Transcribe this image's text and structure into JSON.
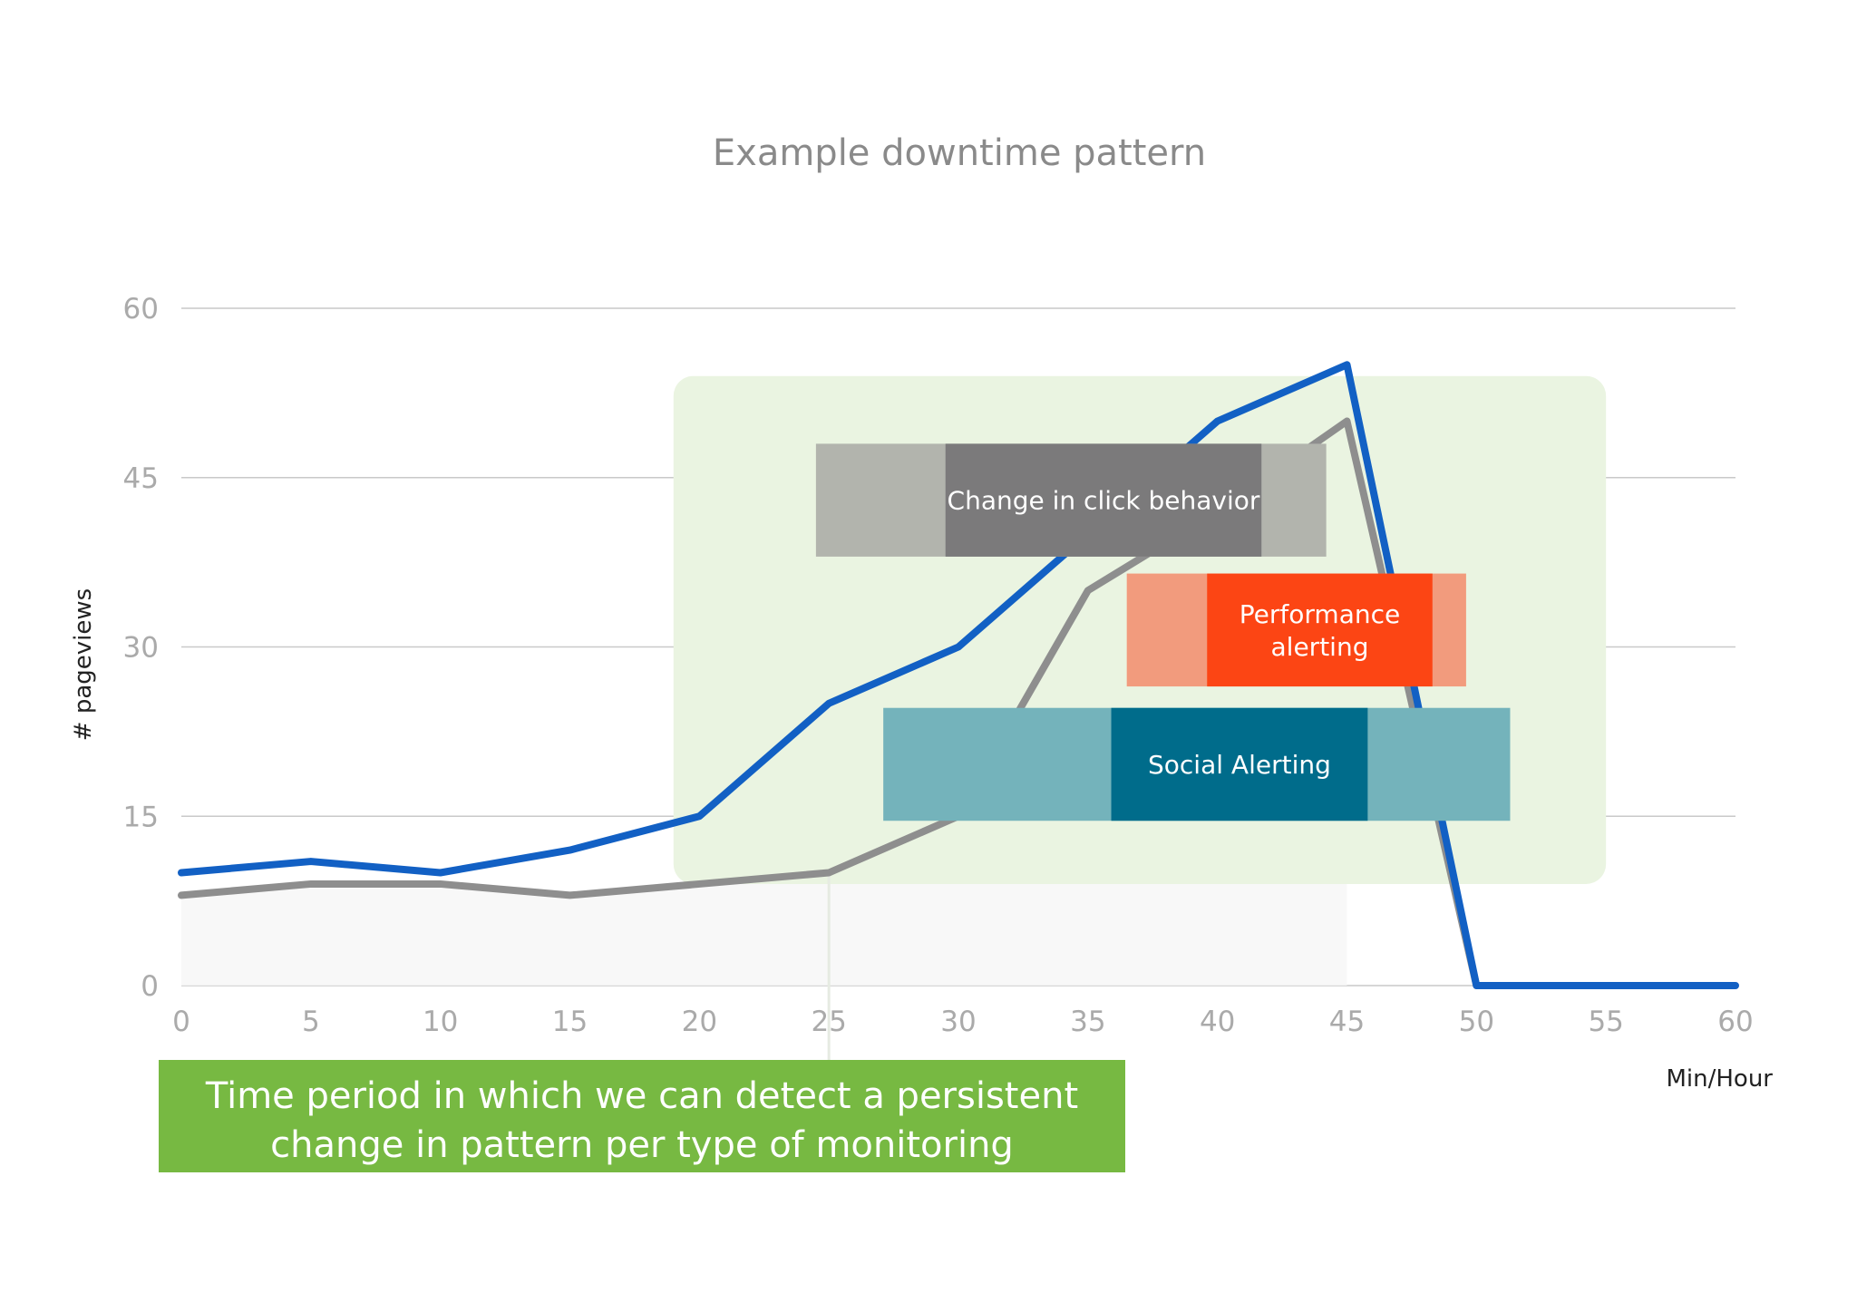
{
  "chart_data": {
    "type": "line",
    "title": "Example downtime pattern",
    "xlabel": "Min/Hour",
    "ylabel": "# pageviews",
    "xlim": [
      0,
      60
    ],
    "ylim": [
      0,
      60
    ],
    "x_ticks": [
      "0",
      "5",
      "10",
      "15",
      "20",
      "25",
      "30",
      "35",
      "40",
      "45",
      "50",
      "55",
      "60"
    ],
    "y_ticks": [
      "0",
      "15",
      "30",
      "45",
      "60"
    ],
    "grid": "horizontal",
    "x": [
      0,
      5,
      10,
      15,
      20,
      25,
      30,
      35,
      40,
      45,
      50,
      55,
      60
    ],
    "series": [
      {
        "color": "#1260c4",
        "values": [
          10,
          11,
          10,
          12,
          15,
          25,
          30,
          40,
          50,
          55,
          0,
          0,
          0
        ]
      },
      {
        "color": "#8e8e8e",
        "values": [
          8,
          9,
          9,
          8,
          9,
          10,
          15,
          35,
          42,
          50,
          0,
          null,
          null
        ]
      }
    ],
    "highlight_region": {
      "x_start": 19,
      "x_end": 55,
      "y_start": 9,
      "y_end": 54,
      "color": "#eaf4e1"
    },
    "bands": [
      {
        "label": "Change in click behavior",
        "x_start": 24.5,
        "x_end": 44.2,
        "y_low": 38,
        "y_high": 48,
        "x_inner_start": 29.5,
        "x_inner_end": 41.7,
        "outer_color": "#b2b4ad",
        "inner_color": "#7b7a7b"
      },
      {
        "label": "Performance alerting",
        "lines": [
          "Performance",
          "alerting"
        ],
        "x_start": 36.5,
        "x_end": 49.6,
        "y_low": 26.5,
        "y_high": 36.5,
        "x_inner_start": 39.6,
        "x_inner_end": 48.3,
        "outer_color": "#f29b7d",
        "inner_color": "#fc4514"
      },
      {
        "label": "Social Alerting",
        "x_start": 27.1,
        "x_end": 51.3,
        "y_low": 14.6,
        "y_high": 24.6,
        "x_inner_start": 35.9,
        "x_inner_end": 45.8,
        "outer_color": "#74b3bb",
        "inner_color": "#006c8b"
      }
    ],
    "marker_line_x": 25,
    "callout": {
      "lines": [
        "Time period in which we can detect a persistent",
        "change in pattern per type of monitoring"
      ],
      "color": "#77b942"
    }
  }
}
